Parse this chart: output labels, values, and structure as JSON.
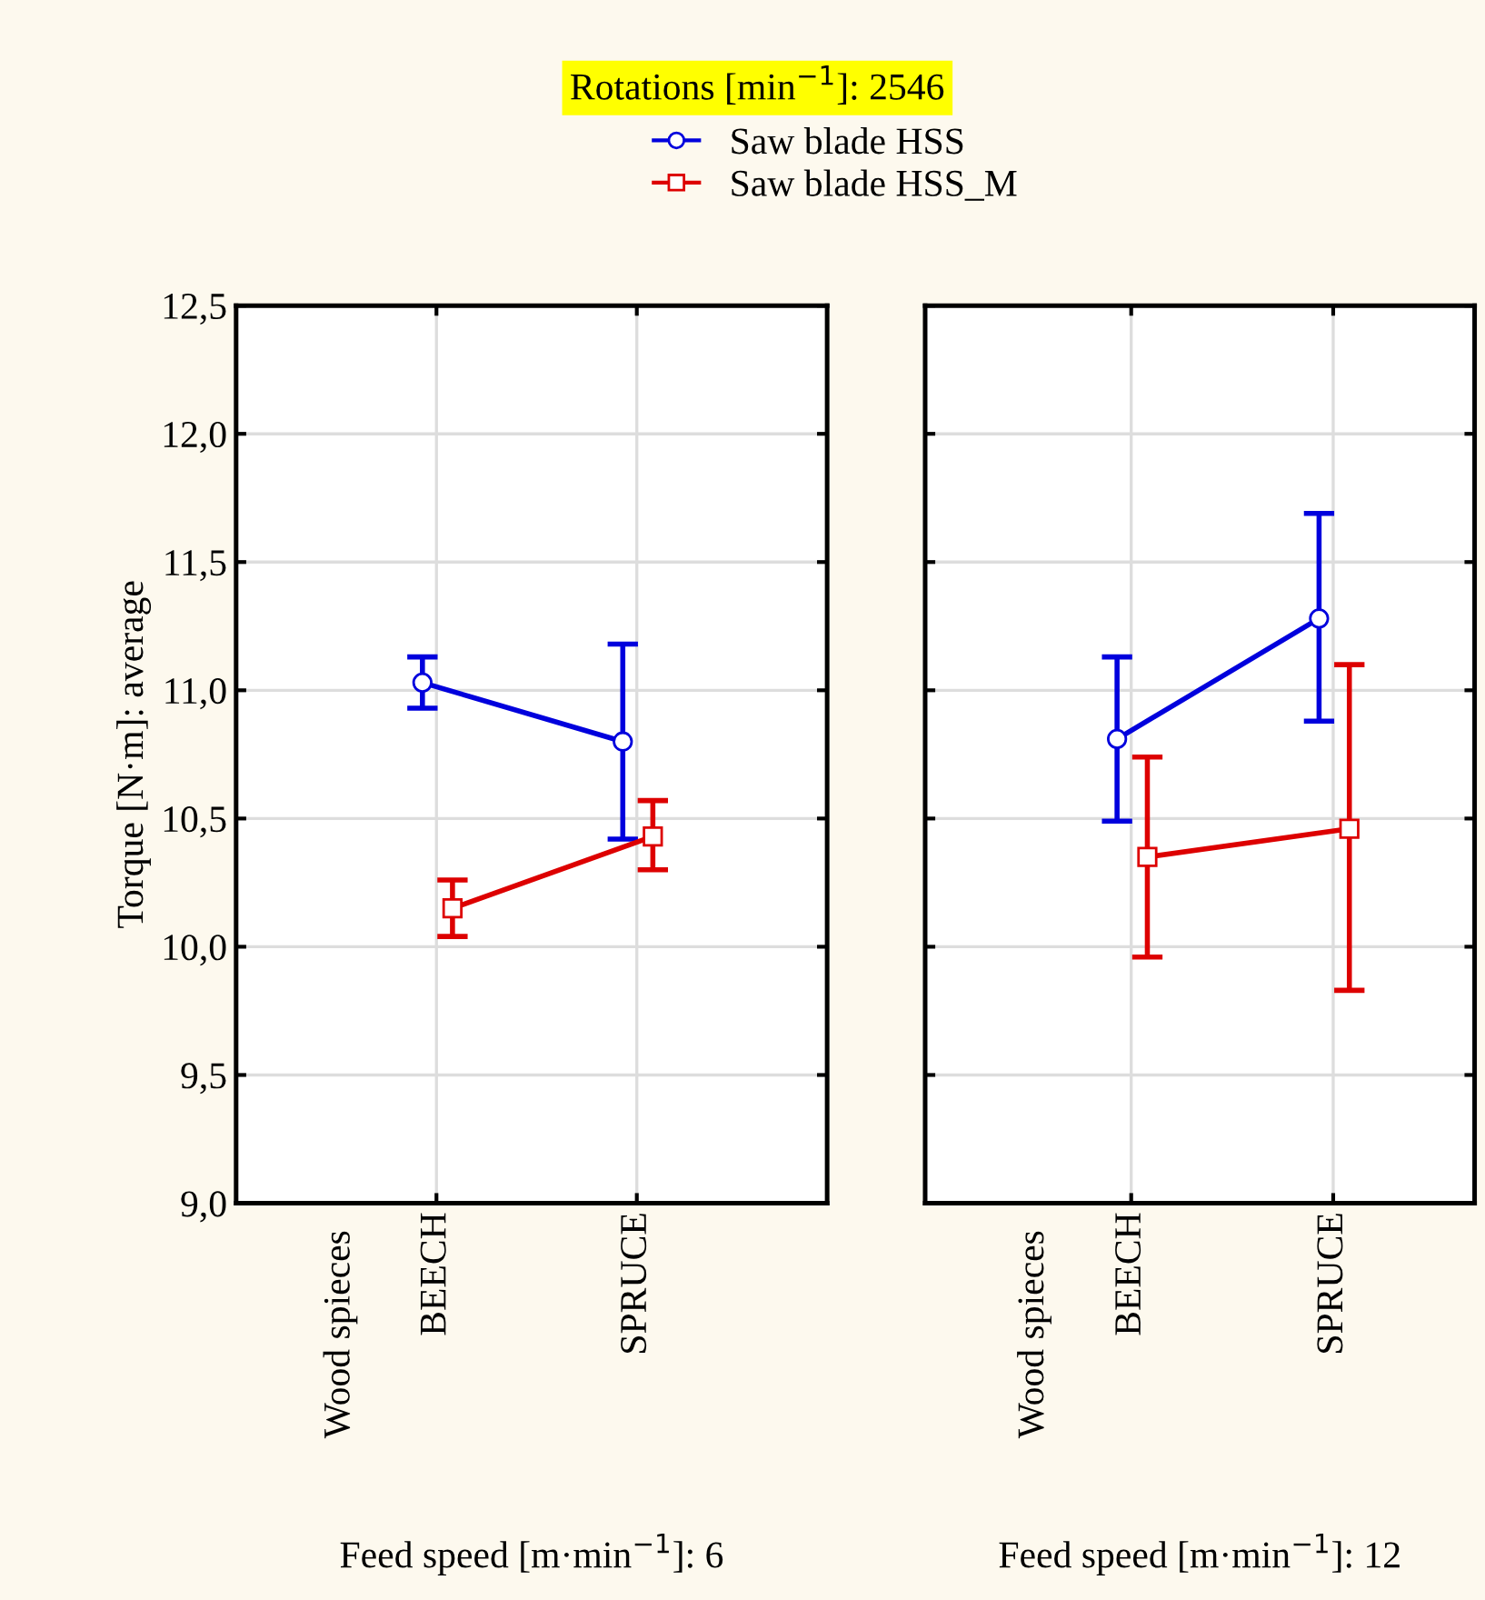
{
  "chart_data": [
    {
      "type": "line",
      "title": "Rotations [min$^{−1}$]: 2546",
      "ylabel": "Torque [N·m]: average",
      "categories": [
        "BEECH",
        "SPRUCE"
      ],
      "series": [
        {
          "name": "Saw blade HSS",
          "color": "#0000dd",
          "marker": "circle",
          "values": [
            11.03,
            10.8
          ],
          "errors": [
            [
              10.93,
              11.13
            ],
            [
              10.42,
              11.18
            ]
          ]
        },
        {
          "name": "Saw blade HSS_M",
          "color": "#dd0000",
          "marker": "square",
          "values": [
            10.15,
            10.43
          ],
          "errors": [
            [
              10.04,
              10.26
            ],
            [
              10.3,
              10.57
            ]
          ]
        }
      ],
      "ylim": [
        9.0,
        12.5
      ],
      "yticks": [
        {
          "value": 9.0,
          "label": "9,0"
        },
        {
          "value": 9.5,
          "label": "9,5"
        },
        {
          "value": 10.0,
          "label": "10,0"
        },
        {
          "value": 10.5,
          "label": "10,5"
        },
        {
          "value": 11.0,
          "label": "11,0"
        },
        {
          "value": 11.5,
          "label": "11,5"
        },
        {
          "value": 12.0,
          "label": "12,0"
        },
        {
          "value": 12.5,
          "label": "12,5"
        }
      ],
      "grid": true,
      "legend": "top",
      "line_style": "solid",
      "annotations": [
        "Wood spieces",
        "Feed speed [m·min$^{−1}$]: 6"
      ]
    },
    {
      "type": "line",
      "categories": [
        "BEECH",
        "SPRUCE"
      ],
      "series": [
        {
          "color": "#0000dd",
          "marker": "circle",
          "values": [
            10.81,
            11.28
          ],
          "errors": [
            [
              10.49,
              11.13
            ],
            [
              10.88,
              11.69
            ]
          ]
        },
        {
          "color": "#dd0000",
          "marker": "square",
          "values": [
            10.35,
            10.46
          ],
          "errors": [
            [
              9.96,
              10.74
            ],
            [
              9.83,
              11.1
            ]
          ]
        }
      ],
      "ylim": [
        9.0,
        12.5
      ],
      "yticks": [
        {
          "value": 9.0,
          "label": null
        },
        {
          "value": 9.5,
          "label": null
        },
        {
          "value": 10.0,
          "label": null
        },
        {
          "value": 10.5,
          "label": null
        },
        {
          "value": 11.0,
          "label": null
        },
        {
          "value": 11.5,
          "label": null
        },
        {
          "value": 12.0,
          "label": null
        },
        {
          "value": 12.5,
          "label": null
        }
      ],
      "grid": true,
      "tick_labels": "x",
      "line_style": "solid",
      "annotations": [
        "Wood spieces",
        "Feed speed [m·min$^{−1}$]: 12"
      ]
    }
  ]
}
